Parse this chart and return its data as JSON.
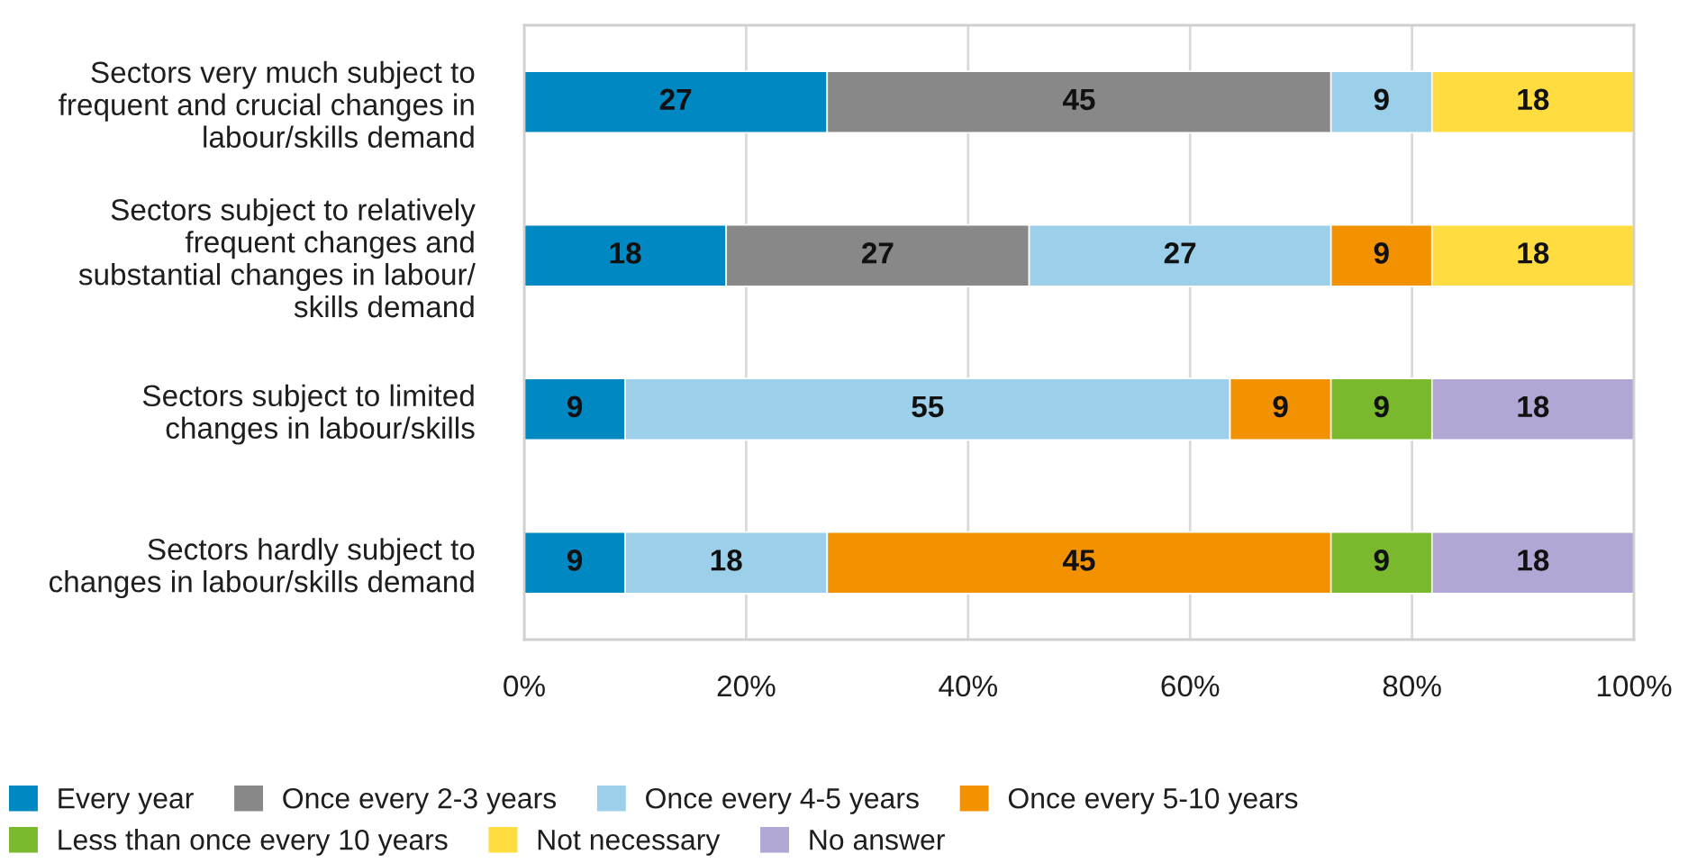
{
  "chart_data": {
    "type": "bar",
    "orientation": "horizontal",
    "stacked": true,
    "categories": [
      "Sectors very much subject to\nfrequent and crucial changes in\nlabour/skills demand",
      "Sectors subject to relatively\nfrequent changes and\nsubstantial changes in labour/\nskills demand",
      "Sectors subject to limited\nchanges in labour/skills",
      "Sectors hardly subject to\nchanges in labour/skills demand"
    ],
    "series": [
      {
        "name": "Every year",
        "color": "#0088c2",
        "values": [
          27.3,
          18.2,
          9.1,
          9.1
        ],
        "value_labels": [
          "27",
          "18",
          "9",
          "9"
        ]
      },
      {
        "name": "Once every 2-3 years",
        "color": "#888888",
        "values": [
          45.4,
          27.3,
          null,
          null
        ],
        "value_labels": [
          "45",
          "27",
          null,
          null
        ]
      },
      {
        "name": "Once every 4-5 years",
        "color": "#9bcfea",
        "values": [
          9.1,
          27.2,
          54.5,
          18.2
        ],
        "value_labels": [
          "9",
          "27",
          "55",
          "18"
        ]
      },
      {
        "name": "Once every 5-10 years",
        "color": "#f39200",
        "values": [
          null,
          9.1,
          9.1,
          45.4
        ],
        "value_labels": [
          null,
          "9",
          "9",
          "45"
        ]
      },
      {
        "name": "Less than once every 10 years",
        "color": "#7ab82e",
        "values": [
          null,
          null,
          9.1,
          9.1
        ],
        "value_labels": [
          null,
          null,
          "9",
          "9"
        ]
      },
      {
        "name": "Not necessary",
        "color": "#ffdd40",
        "values": [
          18.2,
          18.2,
          null,
          null
        ],
        "value_labels": [
          "18",
          "18",
          null,
          null
        ]
      },
      {
        "name": "No answer",
        "color": "#b2a7d4",
        "values": [
          null,
          null,
          18.2,
          18.2
        ],
        "value_labels": [
          null,
          null,
          "18",
          "18"
        ]
      }
    ],
    "xlim": [
      0,
      100
    ],
    "xticks": [
      {
        "value": 0,
        "label": "0%"
      },
      {
        "value": 20,
        "label": "20%"
      },
      {
        "value": 40,
        "label": "40%"
      },
      {
        "value": 60,
        "label": "60%"
      },
      {
        "value": 80,
        "label": "80%"
      },
      {
        "value": 100,
        "label": "100%"
      }
    ],
    "grid": "x",
    "legend": "bottom"
  }
}
